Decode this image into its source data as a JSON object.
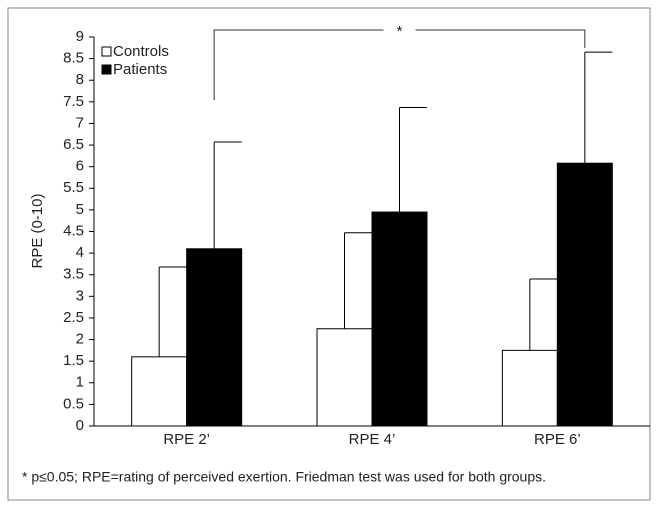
{
  "chart_data": {
    "type": "bar",
    "y_label": "RPE (0-10)",
    "categories": [
      "RPE 2’",
      "RPE 4’",
      "RPE 6’"
    ],
    "series": [
      {
        "name": "Controls",
        "color": "#ffffff",
        "values": [
          1.6,
          2.25,
          1.75
        ],
        "errors": [
          2.08,
          2.22,
          1.65
        ]
      },
      {
        "name": "Patients",
        "color": "#000000",
        "values": [
          4.1,
          4.95,
          6.08
        ],
        "errors": [
          2.47,
          2.42,
          2.57
        ]
      }
    ],
    "ylim": [
      0,
      9
    ],
    "yticks": [
      0,
      0.5,
      1,
      1.5,
      2,
      2.5,
      3,
      3.5,
      4,
      4.5,
      5,
      5.5,
      6,
      6.5,
      7,
      7.5,
      8,
      8.5,
      9
    ],
    "legend": "top-left",
    "annotation": "*",
    "note": "* p≤0.05; RPE=rating of perceived exertion. Friedman test was used for both groups."
  }
}
